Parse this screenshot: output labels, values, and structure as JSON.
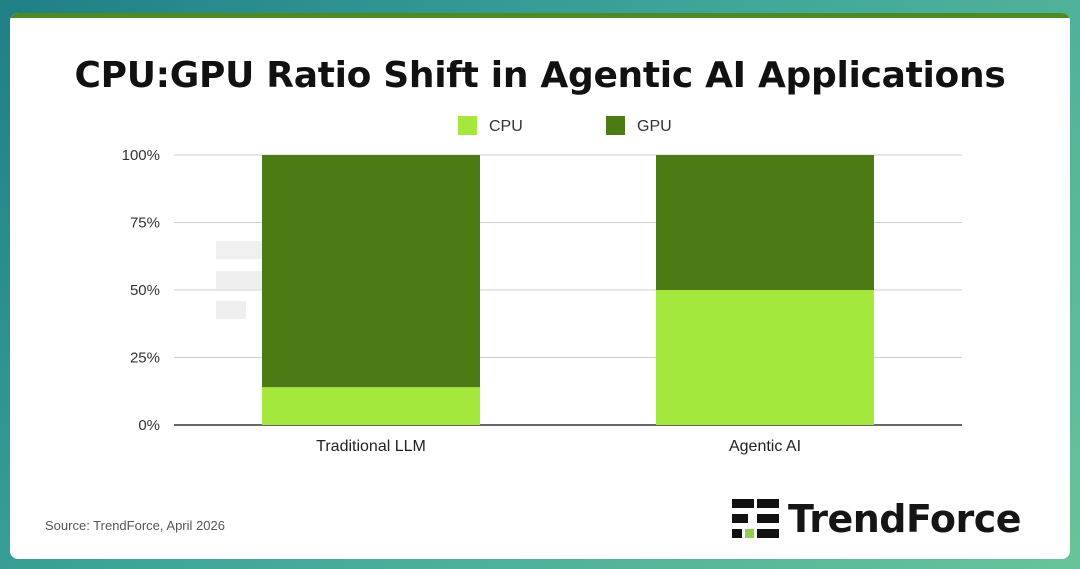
{
  "title": "CPU:GPU Ratio Shift in Agentic AI Applications",
  "source": "Source: TrendForce, April 2026",
  "brand": {
    "name": "TrendForce",
    "icon": "trendforce-logo-icon"
  },
  "colors": {
    "cpu": "#a4e83e",
    "gpu": "#4c7a15",
    "grid": "#cccccc",
    "accent": "#4c8a24"
  },
  "chart_data": {
    "type": "bar",
    "stacked": true,
    "categories": [
      "Traditional LLM",
      "Agentic AI"
    ],
    "series": [
      {
        "name": "CPU",
        "values": [
          14,
          50
        ],
        "color": "#a4e83e"
      },
      {
        "name": "GPU",
        "values": [
          86,
          50
        ],
        "color": "#4c7a15"
      }
    ],
    "ylim": [
      0,
      100
    ],
    "yticks": [
      "0%",
      "25%",
      "50%",
      "75%",
      "100%"
    ],
    "ytick_values": [
      0,
      25,
      50,
      75,
      100
    ],
    "legend": "top-center",
    "grid": true
  }
}
